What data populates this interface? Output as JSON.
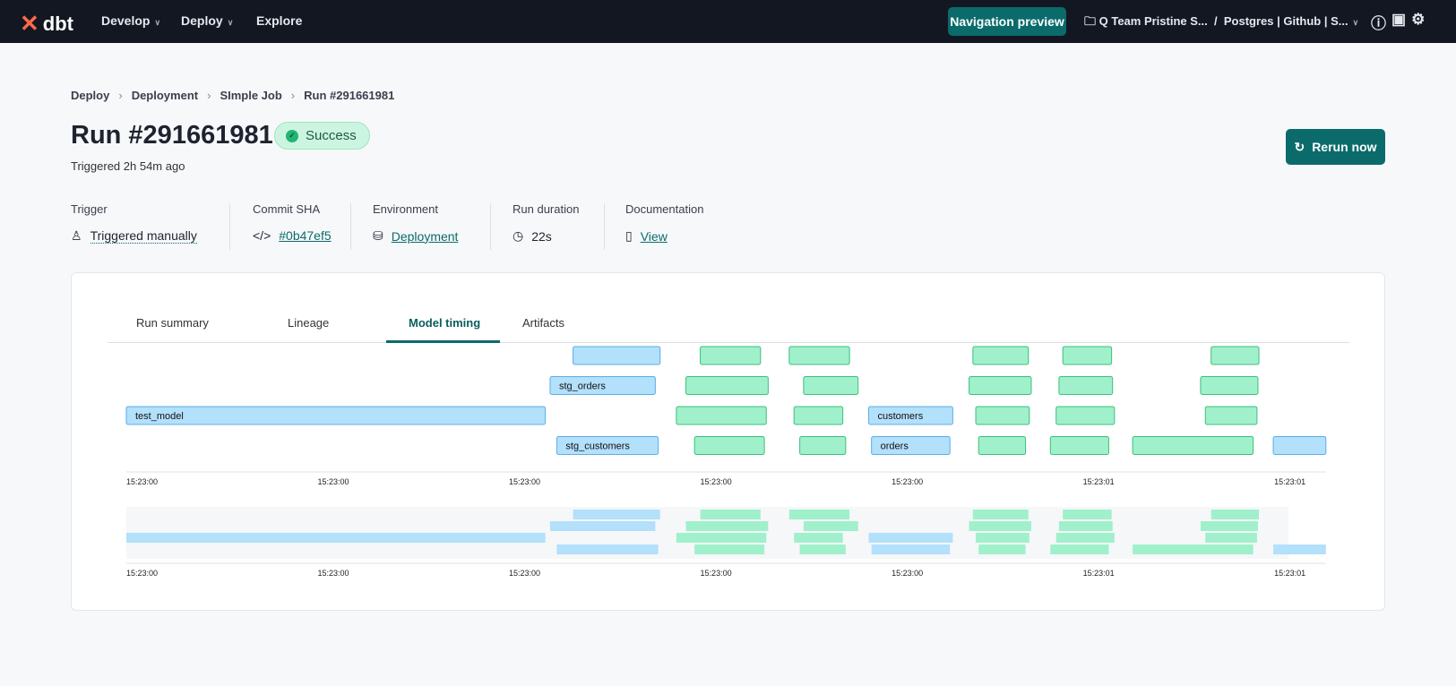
{
  "nav": {
    "logo": "dbt",
    "items": [
      {
        "label": "Develop",
        "dropdown": true
      },
      {
        "label": "Deploy",
        "dropdown": true
      },
      {
        "label": "Explore",
        "dropdown": false
      }
    ],
    "preview_button": "Navigation preview",
    "account": "Q Team Pristine S...",
    "separator": "/",
    "project": "Postgres | Github | S...",
    "icons": [
      "help-icon",
      "feedback-icon",
      "settings-icon"
    ]
  },
  "breadcrumb": [
    "Deploy",
    "Deployment",
    "SImple Job",
    "Run #291661981"
  ],
  "title": "Run #291661981",
  "status": "Success",
  "subtitle": "Triggered 2h 54m ago",
  "rerun_label": "Rerun now",
  "meta": [
    {
      "label": "Trigger",
      "value": "Triggered manually",
      "icon": "user-icon"
    },
    {
      "label": "Commit SHA",
      "value": "#0b47ef5",
      "icon": "code-icon"
    },
    {
      "label": "Environment",
      "value": "Deployment",
      "icon": "database-icon"
    },
    {
      "label": "Run duration",
      "value": "22s",
      "icon": "clock-icon"
    },
    {
      "label": "Documentation",
      "value": "View",
      "icon": "book-icon"
    }
  ],
  "tabs": [
    {
      "label": "Run summary"
    },
    {
      "label": "Lineage"
    },
    {
      "label": "Model timing",
      "active": true
    },
    {
      "label": "Artifacts"
    }
  ],
  "colors": {
    "accent": "#0b6b6b",
    "model_fill": "#b3e0fb",
    "model_border": "#5aaee8",
    "test_fill": "#a0f0cc",
    "test_border": "#3cc07a"
  },
  "chart_data": {
    "type": "gantt",
    "x_unit": "seconds after 15:23:00",
    "xlim": [
      0,
      1.254
    ],
    "ticks": [
      {
        "t": 0,
        "label": "15:23:00"
      },
      {
        "t": 0.2,
        "label": "15:23:00"
      },
      {
        "t": 0.4,
        "label": "15:23:00"
      },
      {
        "t": 0.6,
        "label": "15:23:00"
      },
      {
        "t": 0.8,
        "label": "15:23:00"
      },
      {
        "t": 1.0,
        "label": "15:23:01"
      },
      {
        "t": 1.2,
        "label": "15:23:01"
      }
    ],
    "minimap_window": [
      0,
      1.215
    ],
    "rows": [
      [
        {
          "s": 0.467,
          "e": 0.558,
          "kind": "model",
          "label": ""
        },
        {
          "s": 0.6,
          "e": 0.663,
          "kind": "test"
        },
        {
          "s": 0.693,
          "e": 0.756,
          "kind": "test"
        },
        {
          "s": 0.885,
          "e": 0.943,
          "kind": "test"
        },
        {
          "s": 0.979,
          "e": 1.03,
          "kind": "test"
        },
        {
          "s": 1.134,
          "e": 1.184,
          "kind": "test"
        }
      ],
      [
        {
          "s": 0.443,
          "e": 0.553,
          "kind": "model",
          "label": "stg_orders"
        },
        {
          "s": 0.585,
          "e": 0.671,
          "kind": "test"
        },
        {
          "s": 0.708,
          "e": 0.765,
          "kind": "test"
        },
        {
          "s": 0.881,
          "e": 0.946,
          "kind": "test"
        },
        {
          "s": 0.975,
          "e": 1.031,
          "kind": "test"
        },
        {
          "s": 1.123,
          "e": 1.183,
          "kind": "test"
        }
      ],
      [
        {
          "s": 0,
          "e": 0.438,
          "kind": "model",
          "label": "test_model"
        },
        {
          "s": 0.575,
          "e": 0.669,
          "kind": "test"
        },
        {
          "s": 0.698,
          "e": 0.749,
          "kind": "test"
        },
        {
          "s": 0.776,
          "e": 0.864,
          "kind": "model",
          "label": "customers"
        },
        {
          "s": 0.888,
          "e": 0.944,
          "kind": "test"
        },
        {
          "s": 0.972,
          "e": 1.033,
          "kind": "test"
        },
        {
          "s": 1.128,
          "e": 1.182,
          "kind": "test"
        }
      ],
      [
        {
          "s": 0.45,
          "e": 0.556,
          "kind": "model",
          "label": "stg_customers"
        },
        {
          "s": 0.594,
          "e": 0.667,
          "kind": "test"
        },
        {
          "s": 0.704,
          "e": 0.752,
          "kind": "test"
        },
        {
          "s": 0.779,
          "e": 0.861,
          "kind": "model",
          "label": "orders"
        },
        {
          "s": 0.891,
          "e": 0.94,
          "kind": "test"
        },
        {
          "s": 0.966,
          "e": 1.027,
          "kind": "test"
        },
        {
          "s": 1.052,
          "e": 1.178,
          "kind": "test"
        },
        {
          "s": 1.199,
          "e": 1.254,
          "kind": "model",
          "label": ""
        }
      ]
    ]
  }
}
